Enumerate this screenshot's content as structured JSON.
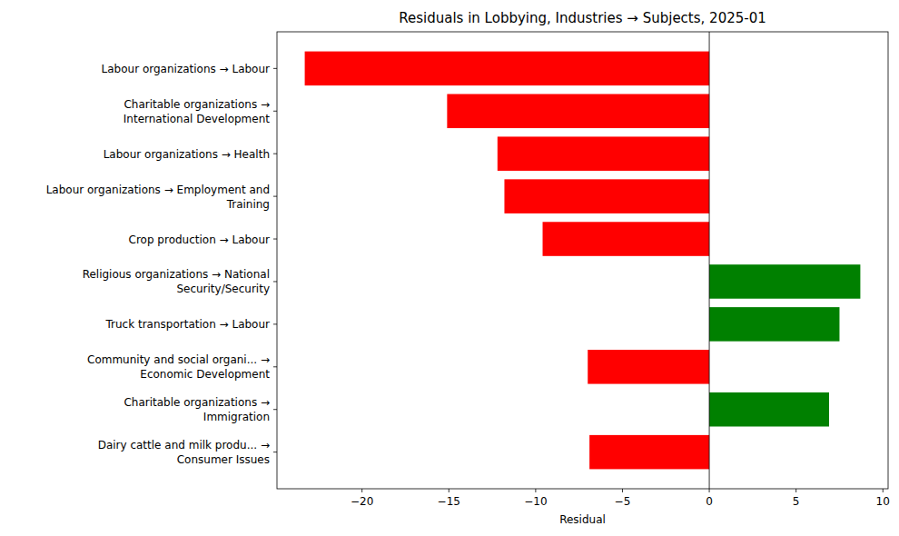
{
  "chart_data": {
    "type": "bar",
    "orientation": "horizontal",
    "title": "Residuals in Lobbying, Industries → Subjects, 2025-01",
    "x_label": "Residual",
    "categories": [
      "Labour organizations → Labour",
      "Charitable organizations →\nInternational Development",
      "Labour organizations → Health",
      "Labour organizations → Employment and\nTraining",
      "Crop production → Labour",
      "Religious organizations → National\nSecurity/Security",
      "Truck transportation → Labour",
      "Community and social organi... →\nEconomic Development",
      "Charitable organizations →\nImmigration",
      "Dairy cattle and milk produ... →\nConsumer Issues"
    ],
    "values": [
      -23.3,
      -15.1,
      -12.2,
      -11.8,
      -9.6,
      8.7,
      7.5,
      -7.0,
      6.9,
      -6.9
    ],
    "colors": [
      "red",
      "red",
      "red",
      "red",
      "red",
      "green",
      "green",
      "red",
      "green",
      "red"
    ],
    "baseline": 0,
    "xlim": [
      -24.9,
      10.3
    ],
    "xticks": [
      -20,
      -15,
      -10,
      -5,
      0,
      5,
      10
    ],
    "grid": false
  }
}
